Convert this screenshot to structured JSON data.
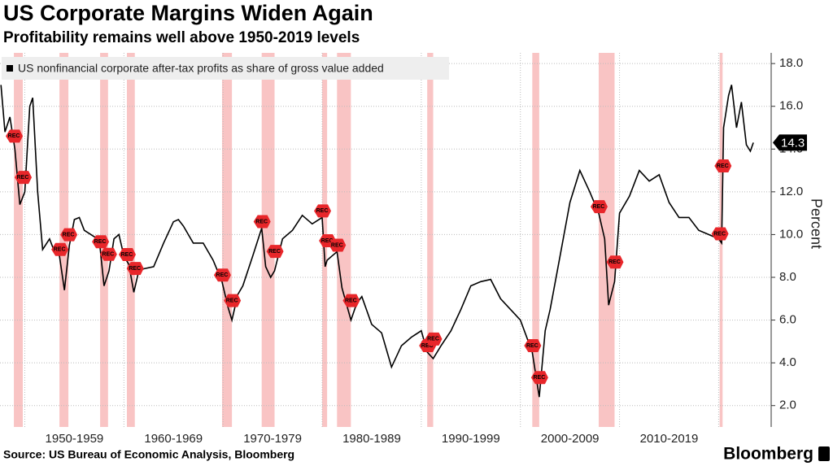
{
  "chart_data": {
    "type": "line",
    "title": "US Corporate Margins Widen Again",
    "subtitle": "Profitability remains well above 1950-2019 levels",
    "y_label": "Percent",
    "source": "Source: US Bureau of Economic Analysis, Bloomberg",
    "brand": "Bloomberg",
    "recession_label": "REC",
    "recession_color": "#f9c4c4",
    "recessions": [
      [
        1948.9,
        1949.8
      ],
      [
        1953.5,
        1954.4
      ],
      [
        1957.6,
        1958.4
      ],
      [
        1960.3,
        1961.1
      ],
      [
        1969.9,
        1970.9
      ],
      [
        1973.9,
        1975.2
      ],
      [
        1980.0,
        1980.5
      ],
      [
        1981.5,
        1982.9
      ],
      [
        1990.6,
        1991.2
      ],
      [
        2001.2,
        2001.9
      ],
      [
        2007.9,
        2009.5
      ],
      [
        2020.1,
        2020.4
      ]
    ],
    "xlim": [
      1947.5,
      2025.3
    ],
    "xticks": [
      {
        "value": 1955,
        "label": "1950-1959"
      },
      {
        "value": 1965,
        "label": "1960-1969"
      },
      {
        "value": 1975,
        "label": "1970-1979"
      },
      {
        "value": 1985,
        "label": "1980-1989"
      },
      {
        "value": 1995,
        "label": "1990-1999"
      },
      {
        "value": 2005,
        "label": "2000-2009"
      },
      {
        "value": 2015,
        "label": "2010-2019"
      }
    ],
    "xgrid": [
      1950,
      1960,
      1970,
      1980,
      1990,
      2000,
      2010,
      2020
    ],
    "ylim": [
      1,
      18.5
    ],
    "yticks": [
      {
        "value": 2,
        "label": "2.0"
      },
      {
        "value": 4,
        "label": "4.0"
      },
      {
        "value": 6,
        "label": "6.0"
      },
      {
        "value": 8,
        "label": "8.0"
      },
      {
        "value": 10,
        "label": "10.0"
      },
      {
        "value": 12,
        "label": "12.0"
      },
      {
        "value": 14,
        "label": "14.0"
      },
      {
        "value": 16,
        "label": "16.0"
      },
      {
        "value": 18,
        "label": "18.0"
      }
    ],
    "grid": true,
    "series": [
      {
        "name": "US nonfinancial corporate after-tax profits as share of gross value added",
        "color": "#000000",
        "x": [
          1947.6,
          1948.0,
          1948.5,
          1949.0,
          1949.5,
          1950.0,
          1950.5,
          1950.8,
          1951.3,
          1951.8,
          1952.5,
          1953.0,
          1953.5,
          1954.0,
          1954.5,
          1955.0,
          1955.5,
          1956.0,
          1957.0,
          1957.5,
          1958.0,
          1958.5,
          1959.0,
          1959.5,
          1960.0,
          1960.5,
          1961.0,
          1961.5,
          1962.0,
          1963.0,
          1964.0,
          1965.0,
          1965.5,
          1966.0,
          1967.0,
          1968.0,
          1969.0,
          1969.9,
          1970.5,
          1970.9,
          1971.5,
          1972.0,
          1973.0,
          1973.9,
          1974.3,
          1974.8,
          1975.2,
          1976.0,
          1977.0,
          1978.0,
          1979.0,
          1980.0,
          1980.3,
          1980.5,
          1981.0,
          1981.5,
          1982.0,
          1982.9,
          1983.5,
          1984.0,
          1985.0,
          1986.0,
          1987.0,
          1988.0,
          1989.0,
          1990.0,
          1990.6,
          1991.2,
          1992.0,
          1993.0,
          1994.0,
          1995.0,
          1996.0,
          1997.0,
          1998.0,
          1999.0,
          2000.0,
          2001.2,
          2001.9,
          2002.5,
          2003.0,
          2004.0,
          2005.0,
          2006.0,
          2007.0,
          2007.9,
          2008.5,
          2008.9,
          2009.5,
          2010.0,
          2011.0,
          2012.0,
          2013.0,
          2014.0,
          2015.0,
          2016.0,
          2017.0,
          2018.0,
          2019.0,
          2020.0,
          2020.3,
          2020.5,
          2021.0,
          2021.3,
          2021.8,
          2022.3,
          2022.8,
          2023.2,
          2023.5
        ],
        "values": [
          17.0,
          14.8,
          15.5,
          14.0,
          11.4,
          12.0,
          16.0,
          16.4,
          12.0,
          9.3,
          9.8,
          9.2,
          9.0,
          7.4,
          9.5,
          10.7,
          10.8,
          10.2,
          9.9,
          9.8,
          7.6,
          8.3,
          9.8,
          10.0,
          9.0,
          8.6,
          7.3,
          8.3,
          8.4,
          8.5,
          9.6,
          10.6,
          10.7,
          10.4,
          9.6,
          9.6,
          8.8,
          7.8,
          6.6,
          6.0,
          7.2,
          7.6,
          9.0,
          10.3,
          8.5,
          8.0,
          8.3,
          9.8,
          10.2,
          10.9,
          10.5,
          10.8,
          8.5,
          8.8,
          9.0,
          9.2,
          7.5,
          6.0,
          6.8,
          7.1,
          5.8,
          5.4,
          3.8,
          4.8,
          5.2,
          5.5,
          4.5,
          4.2,
          4.8,
          5.5,
          6.5,
          7.6,
          7.8,
          7.9,
          7.0,
          6.5,
          6.0,
          4.5,
          2.4,
          5.5,
          6.5,
          9.0,
          11.5,
          13.0,
          12.0,
          11.0,
          9.8,
          6.7,
          7.8,
          11.0,
          11.8,
          13.0,
          12.5,
          12.8,
          11.5,
          10.8,
          10.8,
          10.2,
          10.0,
          9.8,
          9.6,
          15.0,
          16.5,
          17.0,
          15.0,
          16.2,
          14.2,
          13.9,
          14.3
        ]
      }
    ]
  }
}
